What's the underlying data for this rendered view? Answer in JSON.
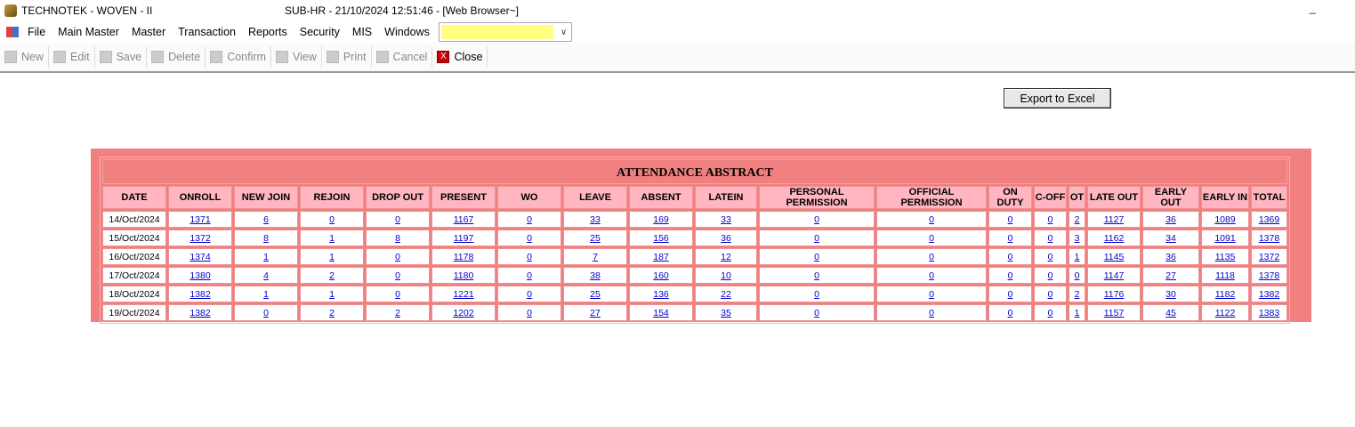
{
  "window": {
    "app_title": "TECHNOTEK - WOVEN - II",
    "center_title": "SUB-HR - 21/10/2024 12:51:46 - [Web Browser~]",
    "minimize": "_"
  },
  "menu": [
    "File",
    "Main Master",
    "Master",
    "Transaction",
    "Reports",
    "Security",
    "MIS",
    "Windows"
  ],
  "combo": {
    "value": ""
  },
  "toolbar": [
    {
      "label": "New",
      "icon": "new-doc-icon",
      "enabled": false
    },
    {
      "label": "Edit",
      "icon": "edit-icon",
      "enabled": false
    },
    {
      "label": "Save",
      "icon": "save-icon",
      "enabled": false
    },
    {
      "label": "Delete",
      "icon": "delete-icon",
      "enabled": false
    },
    {
      "label": "Confirm",
      "icon": "confirm-icon",
      "enabled": false
    },
    {
      "label": "View",
      "icon": "view-icon",
      "enabled": false
    },
    {
      "label": "Print",
      "icon": "print-icon",
      "enabled": false
    },
    {
      "label": "Cancel",
      "icon": "cancel-icon",
      "enabled": false
    },
    {
      "label": "Close",
      "icon": "close-icon",
      "enabled": true
    }
  ],
  "export_label": "Export to Excel",
  "report": {
    "title": "ATTENDANCE ABSTRACT",
    "columns": [
      "DATE",
      "ONROLL",
      "NEW JOIN",
      "REJOIN",
      "DROP OUT",
      "PRESENT",
      "WO",
      "LEAVE",
      "ABSENT",
      "LATEIN",
      "PERSONAL PERMISSION",
      "OFFICIAL PERMISSION",
      "ON DUTY",
      "C-OFF",
      "OT",
      "LATE OUT",
      "EARLY OUT",
      "EARLY IN",
      "TOTAL"
    ],
    "rows": [
      [
        "14/Oct/2024",
        "1371",
        "6",
        "0",
        "0",
        "1167",
        "0",
        "33",
        "169",
        "33",
        "0",
        "0",
        "0",
        "0",
        "2",
        "1127",
        "36",
        "1089",
        "1369"
      ],
      [
        "15/Oct/2024",
        "1372",
        "8",
        "1",
        "8",
        "1197",
        "0",
        "25",
        "156",
        "36",
        "0",
        "0",
        "0",
        "0",
        "3",
        "1162",
        "34",
        "1091",
        "1378"
      ],
      [
        "16/Oct/2024",
        "1374",
        "1",
        "1",
        "0",
        "1178",
        "0",
        "7",
        "187",
        "12",
        "0",
        "0",
        "0",
        "0",
        "1",
        "1145",
        "36",
        "1135",
        "1372"
      ],
      [
        "17/Oct/2024",
        "1380",
        "4",
        "2",
        "0",
        "1180",
        "0",
        "38",
        "160",
        "10",
        "0",
        "0",
        "0",
        "0",
        "0",
        "1147",
        "27",
        "1118",
        "1378"
      ],
      [
        "18/Oct/2024",
        "1382",
        "1",
        "1",
        "0",
        "1221",
        "0",
        "25",
        "136",
        "22",
        "0",
        "0",
        "0",
        "0",
        "2",
        "1176",
        "30",
        "1182",
        "1382"
      ],
      [
        "19/Oct/2024",
        "1382",
        "0",
        "2",
        "2",
        "1202",
        "0",
        "27",
        "154",
        "35",
        "0",
        "0",
        "0",
        "0",
        "1",
        "1157",
        "45",
        "1122",
        "1383"
      ]
    ]
  },
  "colors": {
    "panel": "#f08080",
    "header": "#ffb6c1",
    "link": "#0000cc",
    "combo_fill": "#ffff80"
  }
}
